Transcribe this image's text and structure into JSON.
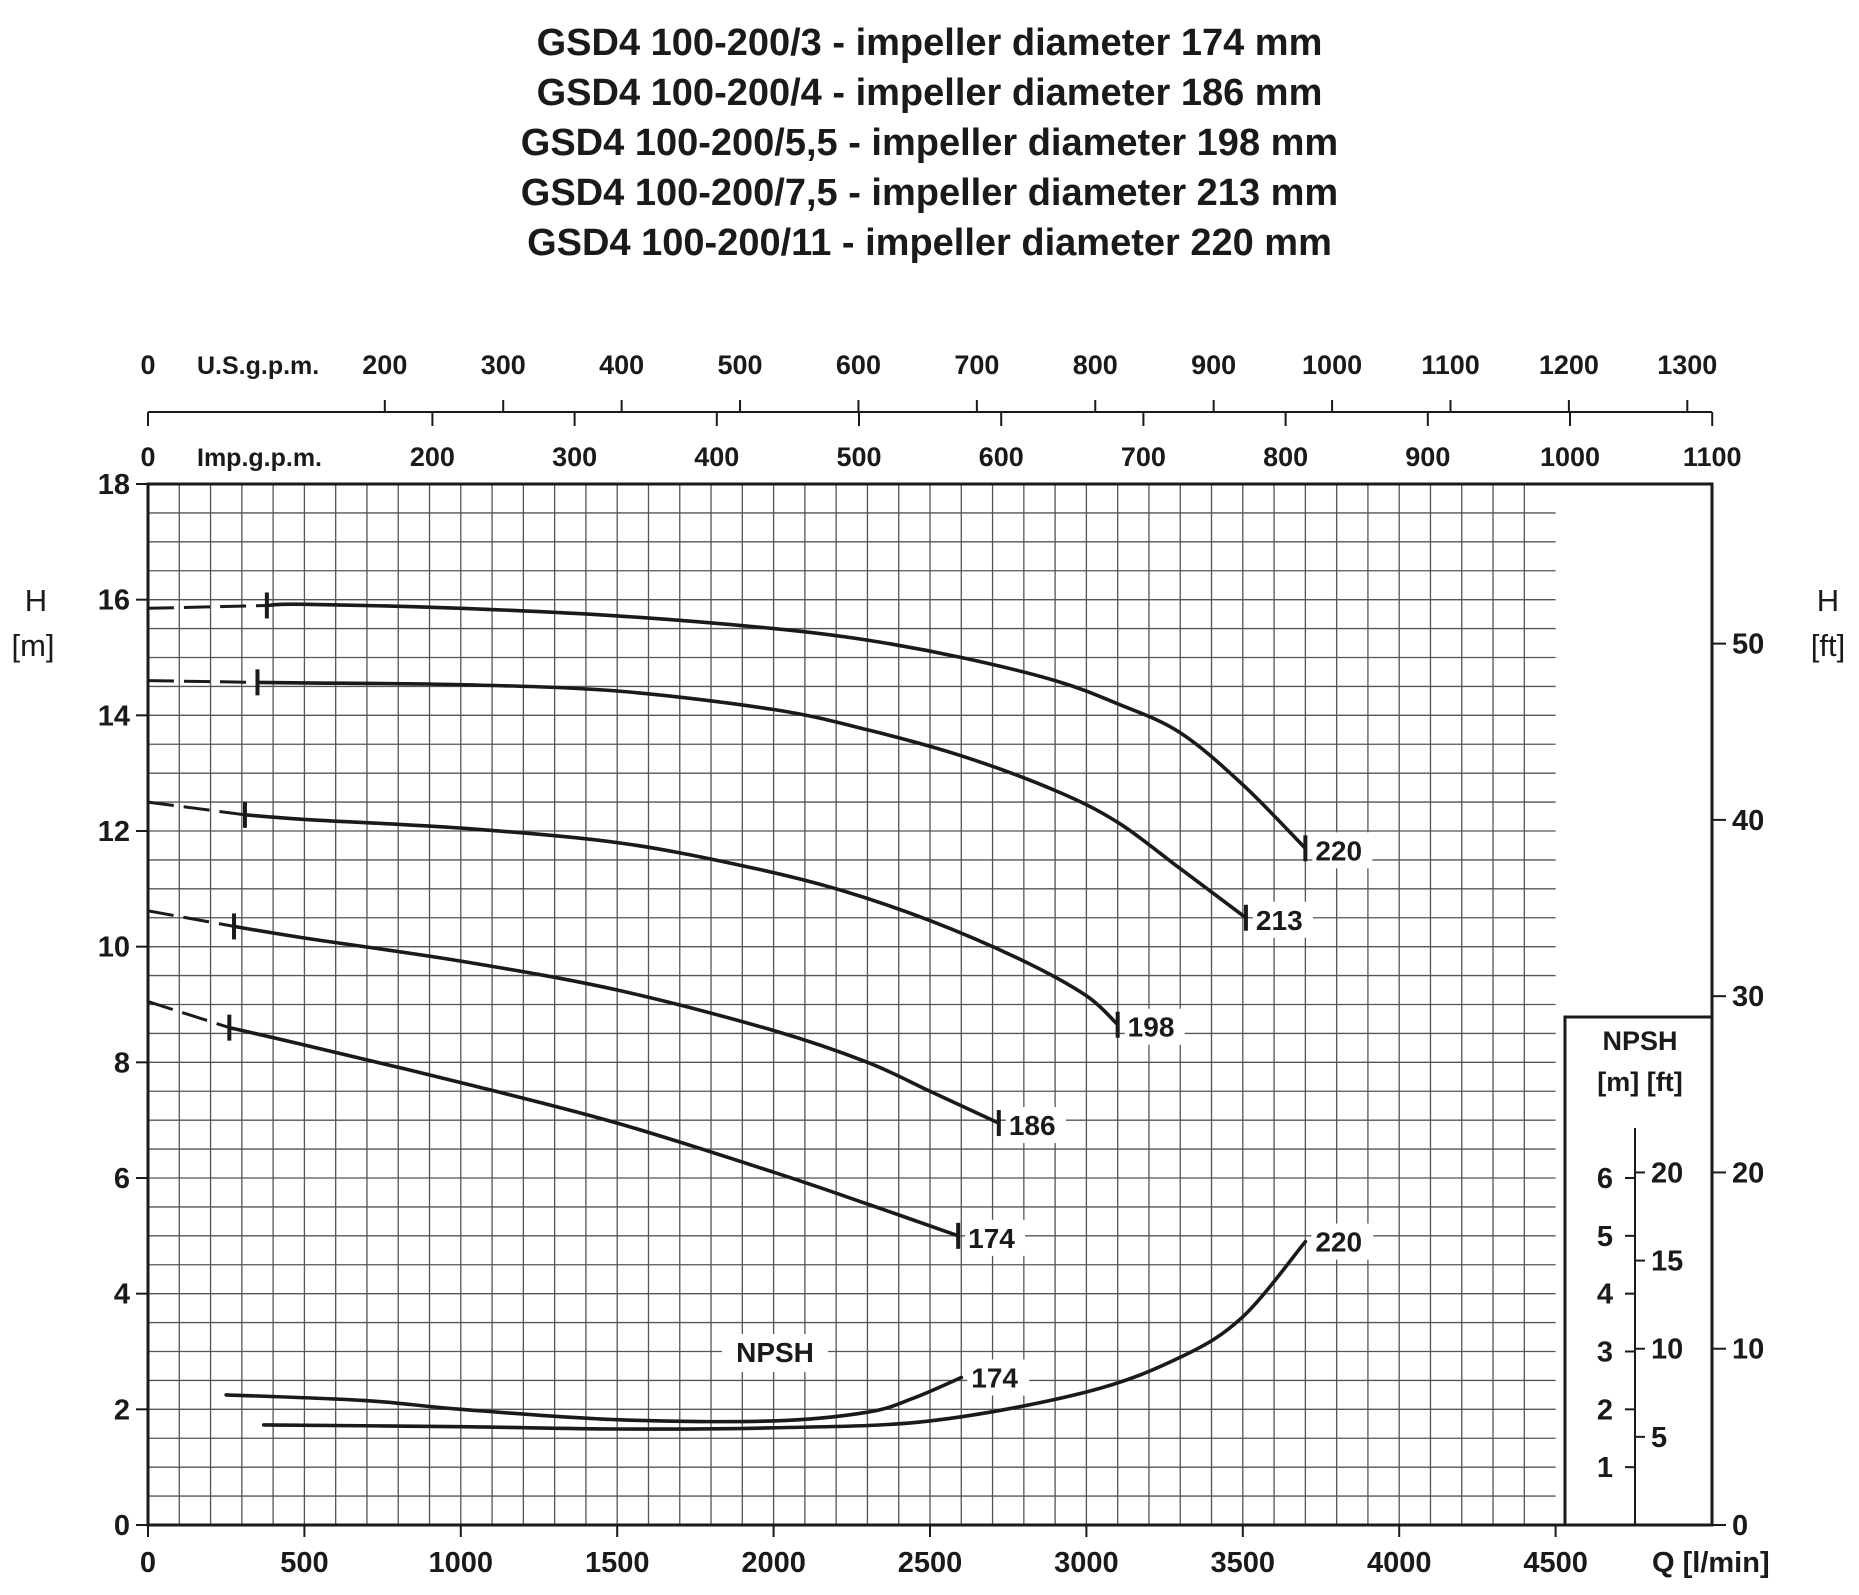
{
  "titles": [
    "GSD4 100-200/3 - impeller diameter 174 mm",
    "GSD4 100-200/4 - impeller diameter 186 mm",
    "GSD4 100-200/5,5 - impeller diameter 198 mm",
    "GSD4 100-200/7,5 - impeller diameter 213 mm",
    "GSD4 100-200/11 - impeller diameter 220 mm"
  ],
  "axes": {
    "left_label_line1": "H",
    "left_label_line2": "[m]",
    "right_label_line1": "H",
    "right_label_line2": "[ft]",
    "x_label": "Q [l/min]",
    "usgpm_label": "U.S.g.p.m.",
    "impgpm_label": "Imp.g.p.m.",
    "npsh_box_line1": "NPSH",
    "npsh_box_line2": "[m] [ft]",
    "npsh_curve_label": "NPSH"
  },
  "chart_data": {
    "type": "line",
    "xlim": [
      0,
      5000
    ],
    "ylim": [
      0,
      18
    ],
    "grid": true,
    "x_ticks": [
      0,
      500,
      1000,
      1500,
      2000,
      2500,
      3000,
      3500,
      4000,
      4500
    ],
    "y_ticks": [
      0,
      2,
      4,
      6,
      8,
      10,
      12,
      14,
      16,
      18
    ],
    "right_ft_ticks": [
      0,
      10,
      20,
      30,
      40,
      50
    ],
    "usgpm_ticks": [
      0,
      200,
      300,
      400,
      500,
      600,
      700,
      800,
      900,
      1000,
      1100,
      1200,
      1300
    ],
    "impgpm_ticks": [
      0,
      200,
      300,
      400,
      500,
      600,
      700,
      800,
      900,
      1000,
      1100
    ],
    "npsh_m_ticks": [
      1,
      2,
      3,
      4,
      5,
      6
    ],
    "npsh_ft_ticks": [
      5,
      10,
      15,
      20
    ],
    "series": [
      {
        "name": "220",
        "dashed": [
          [
            0,
            15.85
          ],
          [
            380,
            15.9
          ]
        ],
        "values": [
          [
            380,
            15.9
          ],
          [
            500,
            15.92
          ],
          [
            1000,
            15.85
          ],
          [
            1500,
            15.72
          ],
          [
            2000,
            15.5
          ],
          [
            2300,
            15.3
          ],
          [
            2600,
            15.0
          ],
          [
            2900,
            14.6
          ],
          [
            3100,
            14.2
          ],
          [
            3300,
            13.7
          ],
          [
            3500,
            12.8
          ],
          [
            3700,
            11.7
          ]
        ],
        "markers": [
          380,
          3700
        ]
      },
      {
        "name": "213",
        "dashed": [
          [
            0,
            14.6
          ],
          [
            350,
            14.57
          ]
        ],
        "values": [
          [
            350,
            14.57
          ],
          [
            500,
            14.56
          ],
          [
            1000,
            14.53
          ],
          [
            1500,
            14.42
          ],
          [
            2000,
            14.1
          ],
          [
            2300,
            13.75
          ],
          [
            2600,
            13.3
          ],
          [
            2900,
            12.7
          ],
          [
            3100,
            12.15
          ],
          [
            3300,
            11.35
          ],
          [
            3510,
            10.5
          ]
        ],
        "markers": [
          350,
          3510
        ]
      },
      {
        "name": "198",
        "dashed": [
          [
            0,
            12.5
          ],
          [
            310,
            12.28
          ]
        ],
        "values": [
          [
            310,
            12.28
          ],
          [
            500,
            12.2
          ],
          [
            1000,
            12.05
          ],
          [
            1500,
            11.8
          ],
          [
            1900,
            11.4
          ],
          [
            2200,
            11.0
          ],
          [
            2500,
            10.45
          ],
          [
            2800,
            9.75
          ],
          [
            3000,
            9.15
          ],
          [
            3100,
            8.65
          ]
        ],
        "markers": [
          310,
          3100
        ]
      },
      {
        "name": "186",
        "dashed": [
          [
            0,
            10.62
          ],
          [
            275,
            10.35
          ]
        ],
        "values": [
          [
            275,
            10.35
          ],
          [
            500,
            10.15
          ],
          [
            1000,
            9.75
          ],
          [
            1500,
            9.25
          ],
          [
            2000,
            8.55
          ],
          [
            2300,
            8.0
          ],
          [
            2500,
            7.5
          ],
          [
            2720,
            6.95
          ]
        ],
        "markers": [
          275,
          2720
        ]
      },
      {
        "name": "174",
        "dashed": [
          [
            0,
            9.05
          ],
          [
            260,
            8.6
          ]
        ],
        "values": [
          [
            260,
            8.6
          ],
          [
            500,
            8.3
          ],
          [
            1000,
            7.65
          ],
          [
            1500,
            6.95
          ],
          [
            2000,
            6.1
          ],
          [
            2300,
            5.55
          ],
          [
            2590,
            5.0
          ]
        ],
        "markers": [
          260,
          2590
        ]
      }
    ],
    "npsh_series": [
      {
        "name": "174",
        "values": [
          [
            250,
            2.25
          ],
          [
            700,
            2.15
          ],
          [
            1000,
            2.0
          ],
          [
            1500,
            1.82
          ],
          [
            2000,
            1.8
          ],
          [
            2300,
            1.95
          ],
          [
            2450,
            2.2
          ],
          [
            2600,
            2.55
          ]
        ]
      },
      {
        "name": "220",
        "values": [
          [
            370,
            1.73
          ],
          [
            1000,
            1.7
          ],
          [
            1500,
            1.66
          ],
          [
            2000,
            1.68
          ],
          [
            2500,
            1.8
          ],
          [
            3000,
            2.3
          ],
          [
            3300,
            2.9
          ],
          [
            3500,
            3.6
          ],
          [
            3700,
            4.9
          ]
        ]
      }
    ]
  }
}
